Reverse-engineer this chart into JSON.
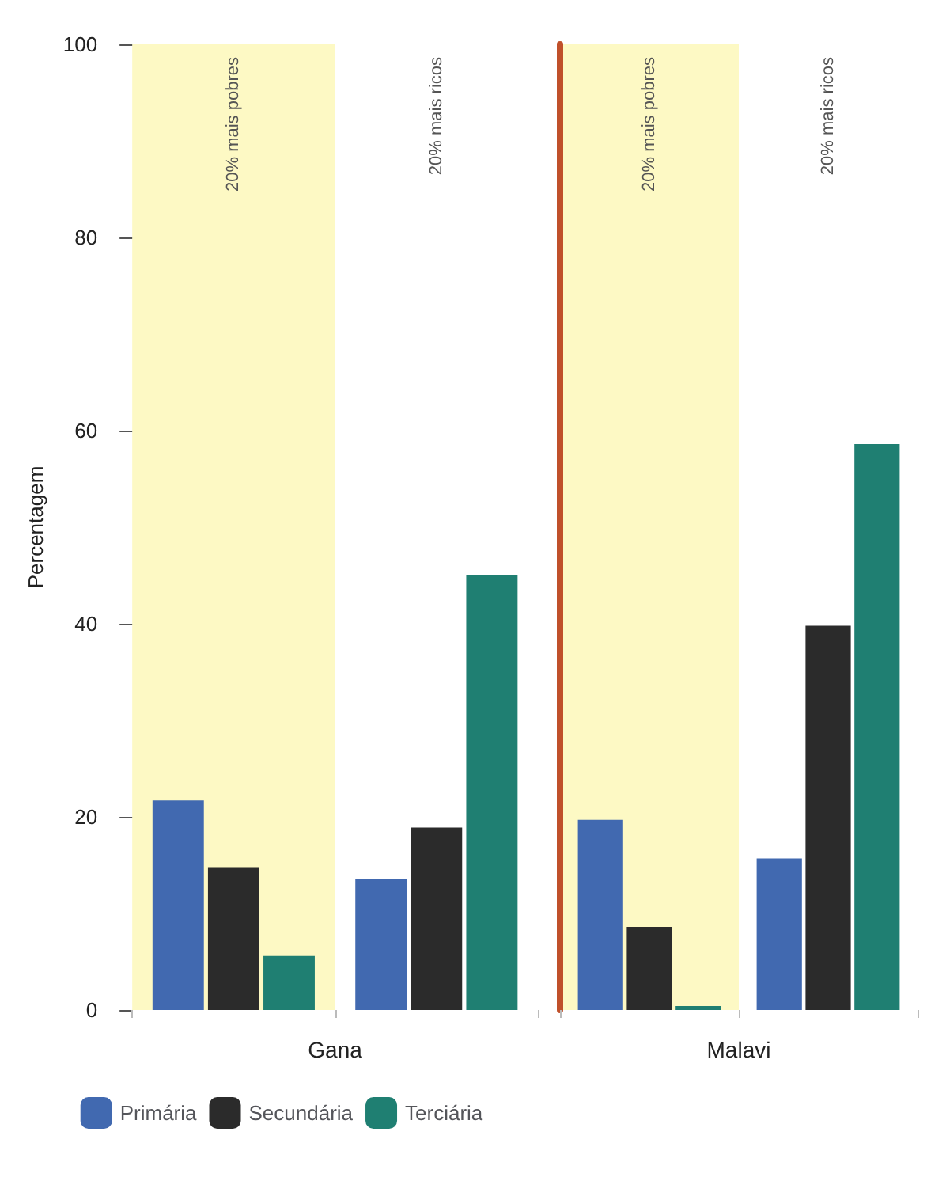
{
  "chart_data": [
    {
      "type": "bar",
      "xlabel": "Gana",
      "ylabel": "Percentagem",
      "categories": [
        "20% mais pobres",
        "20% mais ricos"
      ],
      "series": [
        {
          "name": "Primária",
          "color": "#4169b0",
          "values": [
            21.7,
            13.6
          ]
        },
        {
          "name": "Secundária",
          "color": "#2b2b2b",
          "values": [
            14.8,
            18.9
          ]
        },
        {
          "name": "Terciária",
          "color": "#1f7f72",
          "values": [
            5.6,
            45
          ]
        }
      ],
      "legend": "bottom",
      "ylim": [
        0,
        100
      ],
      "yticks": [
        0,
        20,
        40,
        60,
        80,
        100
      ],
      "bands": [
        {
          "axis": "x",
          "from": "20% mais pobres",
          "to": "20% mais pobres",
          "color": "#fdf9c4"
        }
      ]
    },
    {
      "type": "bar",
      "xlabel": "Malavi",
      "categories": [
        "20% mais pobres",
        "20% mais ricos"
      ],
      "series": [
        {
          "color": "#4169b0",
          "values": [
            19.7,
            15.7
          ]
        },
        {
          "color": "#2b2b2b",
          "values": [
            8.6,
            39.8
          ]
        },
        {
          "color": "#1f7f72",
          "values": [
            0.4,
            58.6
          ]
        }
      ],
      "ylim": [
        0,
        100
      ],
      "yticks": [
        0,
        20,
        40,
        60,
        80,
        100
      ],
      "tick_labels": "x",
      "bands": [
        {
          "axis": "x",
          "from": "20% mais pobres",
          "to": "20% mais pobres",
          "color": "#fdf9c4"
        }
      ]
    }
  ]
}
